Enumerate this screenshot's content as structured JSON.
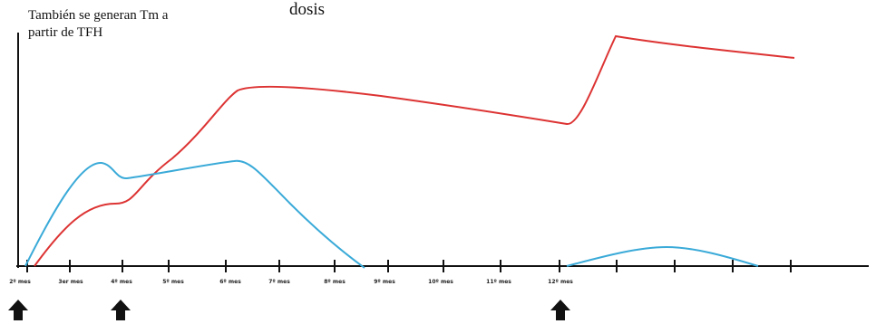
{
  "note": {
    "line1": "También se generan Tm a",
    "line2": "partir de TFH"
  },
  "top_text": "dosis",
  "axis": {
    "x_labels": [
      "2º mes",
      "3er mes",
      "4º mes",
      "5º mes",
      "6º mes",
      "7º mes",
      "8º mes",
      "9º mes",
      "10º mes",
      "11º mes",
      "12º mes"
    ]
  },
  "doses_at": [
    "2º mes",
    "4º mes",
    "12º mes"
  ],
  "colors": {
    "red_curve": "#dd3333",
    "blue_curve": "#3aaad8",
    "axis": "#111111"
  },
  "icons": {
    "dose_marker": "up-arrow-icon"
  }
}
